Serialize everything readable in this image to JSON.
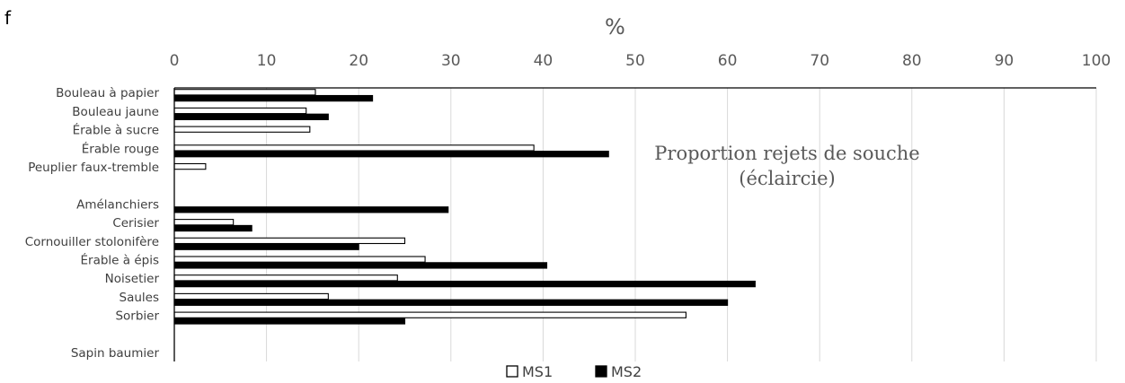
{
  "panel_letter": "f",
  "chart_data": {
    "type": "bar",
    "orientation": "horizontal",
    "x_axis_title": "%",
    "xlim": [
      0,
      100
    ],
    "x_ticks": [
      0,
      10,
      20,
      30,
      40,
      50,
      60,
      70,
      80,
      90,
      100
    ],
    "x_axis_position": "top",
    "grid": "vertical",
    "annotation": [
      "Proportion rejets de souche",
      "(éclaircie)"
    ],
    "categories": [
      "Bouleau à papier",
      "Bouleau jaune",
      "Érable à sucre",
      "Érable rouge",
      "Peuplier faux-tremble",
      "",
      "Amélanchiers",
      "Cerisier",
      "Cornouiller stolonifère",
      "Érable à épis",
      "Noisetier",
      "Saules",
      "Sorbier",
      "",
      "Sapin baumier"
    ],
    "series": [
      {
        "name": "MS1",
        "fill": "#ffffff",
        "stroke": "#000000",
        "values": [
          15.3,
          14.3,
          14.7,
          39.0,
          3.4,
          null,
          0,
          6.4,
          25.0,
          27.2,
          24.2,
          16.7,
          55.5,
          null,
          0
        ]
      },
      {
        "name": "MS2",
        "fill": "#000000",
        "stroke": "#000000",
        "values": [
          21.5,
          16.7,
          0,
          47.1,
          0,
          null,
          29.7,
          8.4,
          20.0,
          40.4,
          63.0,
          60.0,
          25.0,
          null,
          0
        ]
      }
    ],
    "legend_position": "bottom-center"
  },
  "colors": {
    "tick_text": "#595959",
    "grid": "#d9d9d9",
    "axis": "#000000"
  }
}
